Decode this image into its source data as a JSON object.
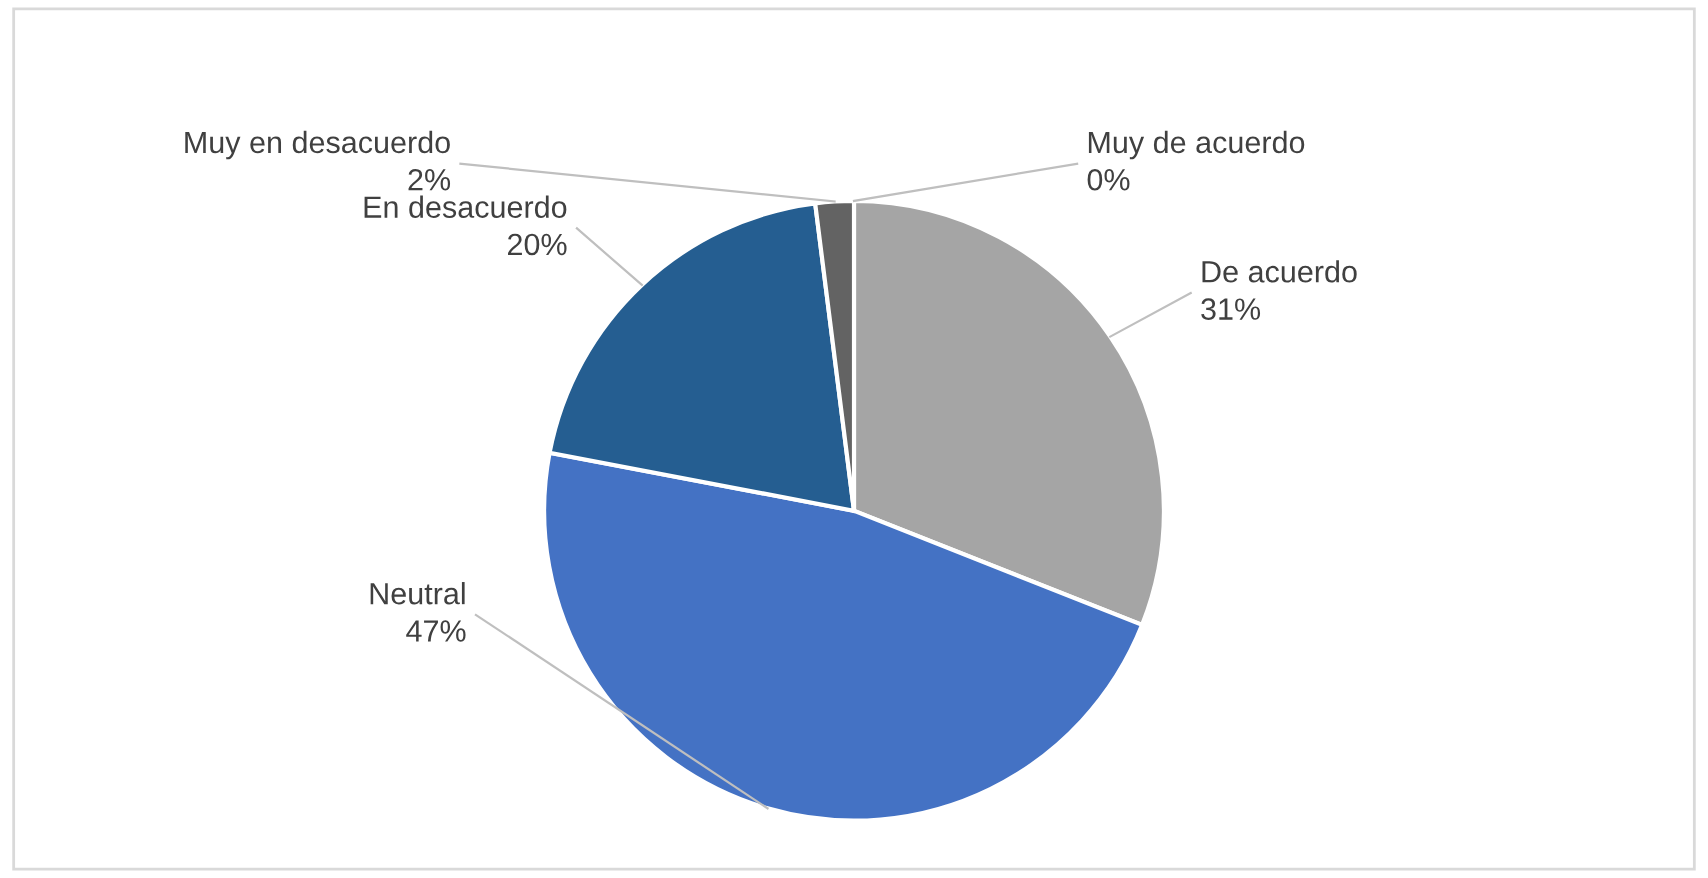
{
  "chart_data": {
    "type": "pie",
    "categories": [
      "Muy de acuerdo",
      "De acuerdo",
      "Neutral",
      "En desacuerdo",
      "Muy en desacuerdo"
    ],
    "values": [
      0,
      31,
      47,
      20,
      2
    ],
    "colors": [
      "#ffc000",
      "#a5a5a5",
      "#4472c4",
      "#255e91",
      "#636363"
    ],
    "value_labels": [
      "0%",
      "31%",
      "47%",
      "20%",
      "2%"
    ],
    "legend": false
  }
}
